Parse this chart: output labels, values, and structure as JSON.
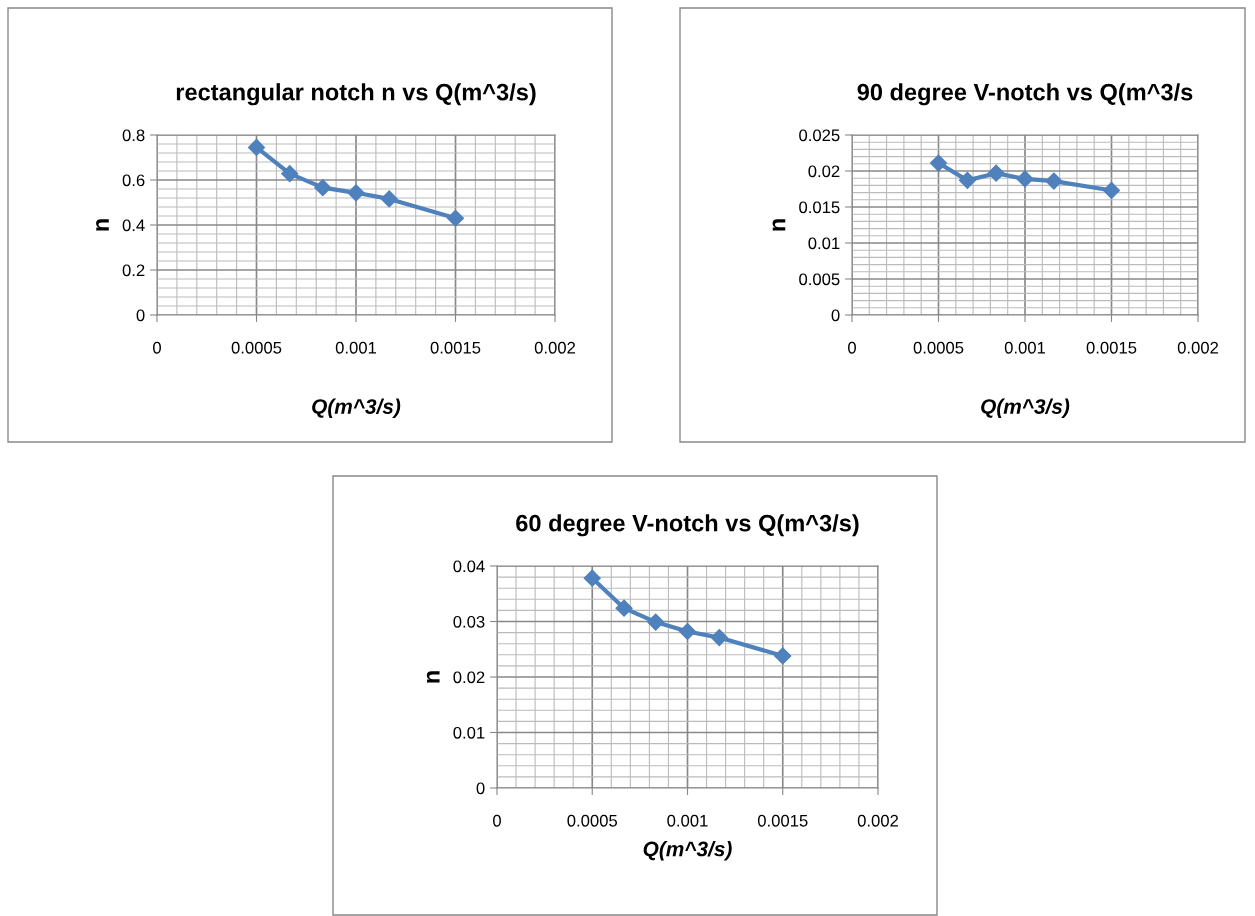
{
  "chart_data": [
    {
      "type": "line",
      "title": "rectangular notch n vs Q(m^3/s)",
      "xlabel": "Q(m^3/s)",
      "ylabel": "n",
      "x": [
        0.0005,
        0.000667,
        0.000833,
        0.001,
        0.001167,
        0.0015
      ],
      "series": [
        {
          "color": "#4f81bd",
          "values": [
            0.745,
            0.628,
            0.566,
            0.543,
            0.516,
            0.43
          ]
        }
      ],
      "xlim": [
        0,
        0.002
      ],
      "xticks": [
        0,
        0.0005,
        0.001,
        0.0015,
        0.002
      ],
      "ylim": [
        0,
        0.8
      ],
      "yticks": [
        0,
        0.2,
        0.4,
        0.6,
        0.8
      ],
      "grid": true,
      "marker": "diamond",
      "line_style": "solid"
    },
    {
      "type": "line",
      "title": "90 degree V-notch vs Q(m^3/s",
      "xlabel": "Q(m^3/s)",
      "ylabel": "n",
      "x": [
        0.0005,
        0.000667,
        0.000833,
        0.001,
        0.001167,
        0.0015
      ],
      "series": [
        {
          "color": "#4f81bd",
          "values": [
            0.0211,
            0.0187,
            0.0197,
            0.0189,
            0.0186,
            0.0173
          ]
        }
      ],
      "xlim": [
        0,
        0.002
      ],
      "xticks": [
        0,
        0.0005,
        0.001,
        0.0015,
        0.002
      ],
      "ylim": [
        0,
        0.025
      ],
      "yticks": [
        0,
        0.005,
        0.01,
        0.015,
        0.02,
        0.025
      ],
      "grid": true,
      "marker": "diamond",
      "line_style": "solid"
    },
    {
      "type": "line",
      "title": "60 degree V-notch vs Q(m^3/s)",
      "xlabel": "Q(m^3/s)",
      "ylabel": "n",
      "x": [
        0.0005,
        0.000667,
        0.000833,
        0.001,
        0.001167,
        0.0015
      ],
      "series": [
        {
          "color": "#4f81bd",
          "values": [
            0.0378,
            0.0324,
            0.0299,
            0.0282,
            0.0271,
            0.0238
          ]
        }
      ],
      "xlim": [
        0,
        0.002
      ],
      "xticks": [
        0,
        0.0005,
        0.001,
        0.0015,
        0.002
      ],
      "ylim": [
        0,
        0.04
      ],
      "yticks": [
        0,
        0.01,
        0.02,
        0.03,
        0.04
      ],
      "grid": true,
      "marker": "diamond",
      "line_style": "solid"
    }
  ]
}
